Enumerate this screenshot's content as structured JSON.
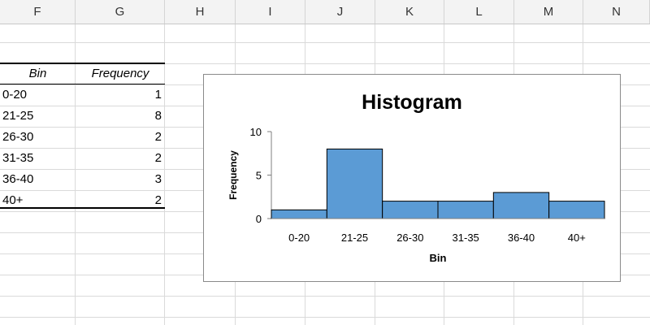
{
  "sheet": {
    "columns": [
      "F",
      "G",
      "H",
      "I",
      "J",
      "K",
      "L",
      "M",
      "N"
    ],
    "table": {
      "headers": [
        "Bin",
        "Frequency"
      ],
      "rows": [
        {
          "bin": "0-20",
          "freq": "1"
        },
        {
          "bin": "21-25",
          "freq": "8"
        },
        {
          "bin": "26-30",
          "freq": "2"
        },
        {
          "bin": "31-35",
          "freq": "2"
        },
        {
          "bin": "36-40",
          "freq": "3"
        },
        {
          "bin": "40+",
          "freq": "2"
        }
      ]
    }
  },
  "chart_data": {
    "type": "bar",
    "title": "Histogram",
    "xlabel": "Bin",
    "ylabel": "Frequency",
    "categories": [
      "0-20",
      "21-25",
      "26-30",
      "31-35",
      "36-40",
      "40+"
    ],
    "values": [
      1,
      8,
      2,
      2,
      3,
      2
    ],
    "ylim": [
      0,
      10
    ],
    "yticks": [
      "0",
      "5",
      "10"
    ],
    "grid": false,
    "legend": "none",
    "bar_color": "#5b9bd5",
    "gap": 0
  }
}
